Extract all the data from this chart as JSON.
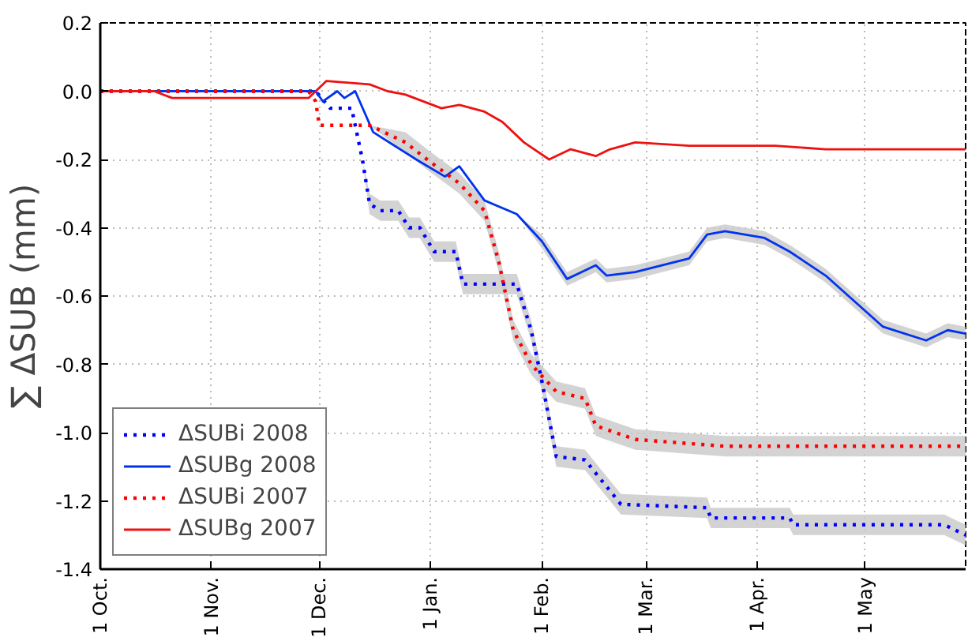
{
  "chart_data": {
    "type": "line",
    "ylabel": "∑ ΔSUB (mm)",
    "xlim": [
      "2007-10-01",
      "2008-05-29"
    ],
    "ylim": [
      -1.4,
      0.2
    ],
    "xticks": [
      {
        "value": "2007-10-01",
        "label": "1 Oct."
      },
      {
        "value": "2007-11-01",
        "label": "1 Nov."
      },
      {
        "value": "2007-12-01",
        "label": "1 Dec."
      },
      {
        "value": "2008-01-01",
        "label": "1 Jan."
      },
      {
        "value": "2008-02-01",
        "label": "1 Feb."
      },
      {
        "value": "2008-03-01",
        "label": "1 Mar."
      },
      {
        "value": "2008-04-01",
        "label": "1 Apr."
      },
      {
        "value": "2008-05-01",
        "label": "1 May"
      }
    ],
    "yticks": [
      {
        "value": 0.2,
        "label": "0.2"
      },
      {
        "value": 0,
        "label": "0.0"
      },
      {
        "value": -0.2,
        "label": "-0.2"
      },
      {
        "value": -0.4,
        "label": "-0.4"
      },
      {
        "value": -0.6,
        "label": "-0.6"
      },
      {
        "value": -0.8,
        "label": "-0.8"
      },
      {
        "value": -1.0,
        "label": "-1.0"
      },
      {
        "value": -1.2,
        "label": "-1.2"
      },
      {
        "value": -1.4,
        "label": "-1.4"
      }
    ],
    "grid": true,
    "legend": "bottom left",
    "marker": "none",
    "series": [
      {
        "name": "ΔSUBi 2008",
        "color": "#0000ff",
        "line_style": "dotted",
        "x": [
          "2007-10-01",
          "2007-11-30",
          "2007-12-04",
          "2007-12-10",
          "2007-12-13",
          "2007-12-15",
          "2007-12-18",
          "2007-12-23",
          "2007-12-26",
          "2007-12-29",
          "2008-01-02",
          "2008-01-08",
          "2008-01-10",
          "2008-01-25",
          "2008-01-29",
          "2008-02-01",
          "2008-02-05",
          "2008-02-13",
          "2008-02-23",
          "2008-03-18",
          "2008-03-19",
          "2008-04-10",
          "2008-04-11",
          "2008-05-23",
          "2008-05-29"
        ],
        "values": [
          0,
          0,
          -0.05,
          -0.05,
          -0.2,
          -0.33,
          -0.35,
          -0.35,
          -0.4,
          -0.4,
          -0.47,
          -0.47,
          -0.565,
          -0.565,
          -0.7,
          -0.85,
          -1.07,
          -1.08,
          -1.21,
          -1.22,
          -1.25,
          -1.25,
          -1.27,
          -1.27,
          -1.3
        ],
        "lower": [
          0,
          0,
          -0.05,
          -0.05,
          -0.2,
          -0.36,
          -0.38,
          -0.38,
          -0.43,
          -0.43,
          -0.5,
          -0.5,
          -0.595,
          -0.595,
          -0.73,
          -0.88,
          -1.1,
          -1.11,
          -1.24,
          -1.25,
          -1.28,
          -1.28,
          -1.3,
          -1.3,
          -1.33
        ],
        "upper": [
          0,
          0,
          -0.05,
          -0.05,
          -0.2,
          -0.3,
          -0.32,
          -0.32,
          -0.37,
          -0.37,
          -0.44,
          -0.44,
          -0.535,
          -0.535,
          -0.67,
          -0.82,
          -1.04,
          -1.05,
          -1.18,
          -1.19,
          -1.22,
          -1.22,
          -1.24,
          -1.24,
          -1.27
        ]
      },
      {
        "name": "ΔSUBg 2008",
        "color": "#0033ee",
        "line_style": "solid",
        "x": [
          "2007-10-01",
          "2007-11-30",
          "2007-12-02",
          "2007-12-06",
          "2007-12-08",
          "2007-12-11",
          "2007-12-16",
          "2007-12-22",
          "2007-12-28",
          "2008-01-05",
          "2008-01-09",
          "2008-01-16",
          "2008-01-25",
          "2008-02-01",
          "2008-02-08",
          "2008-02-12",
          "2008-02-16",
          "2008-02-19",
          "2008-02-27",
          "2008-03-13",
          "2008-03-18",
          "2008-03-23",
          "2008-04-03",
          "2008-04-10",
          "2008-04-20",
          "2008-05-06",
          "2008-05-18",
          "2008-05-24",
          "2008-05-29"
        ],
        "values": [
          0,
          0,
          -0.03,
          0,
          -0.02,
          0,
          -0.12,
          -0.16,
          -0.2,
          -0.25,
          -0.22,
          -0.32,
          -0.36,
          -0.44,
          -0.55,
          -0.53,
          -0.51,
          -0.54,
          -0.53,
          -0.49,
          -0.42,
          -0.41,
          -0.43,
          -0.47,
          -0.54,
          -0.69,
          -0.73,
          -0.7,
          -0.71
        ],
        "lower": [
          0,
          0,
          -0.03,
          0,
          -0.02,
          0,
          -0.12,
          -0.16,
          -0.2,
          -0.25,
          -0.22,
          -0.32,
          -0.36,
          -0.46,
          -0.57,
          -0.55,
          -0.53,
          -0.56,
          -0.55,
          -0.51,
          -0.44,
          -0.43,
          -0.45,
          -0.49,
          -0.56,
          -0.71,
          -0.75,
          -0.72,
          -0.73
        ],
        "upper": [
          0,
          0,
          -0.03,
          0,
          -0.02,
          0,
          -0.12,
          -0.16,
          -0.2,
          -0.25,
          -0.22,
          -0.32,
          -0.36,
          -0.42,
          -0.53,
          -0.51,
          -0.49,
          -0.52,
          -0.51,
          -0.47,
          -0.4,
          -0.39,
          -0.41,
          -0.45,
          -0.52,
          -0.67,
          -0.71,
          -0.68,
          -0.69
        ]
      },
      {
        "name": "ΔSUBi 2007",
        "color": "#ff0000",
        "line_style": "dotted",
        "x": [
          "2007-10-01",
          "2007-11-28",
          "2007-11-30",
          "2007-12-01",
          "2007-12-15",
          "2007-12-25",
          "2007-12-31",
          "2008-01-09",
          "2008-01-16",
          "2008-01-20",
          "2008-01-24",
          "2008-01-29",
          "2008-02-05",
          "2008-02-13",
          "2008-02-16",
          "2008-02-27",
          "2008-03-23",
          "2008-05-29"
        ],
        "values": [
          0,
          0,
          -0.03,
          -0.1,
          -0.1,
          -0.15,
          -0.2,
          -0.27,
          -0.35,
          -0.5,
          -0.7,
          -0.8,
          -0.88,
          -0.9,
          -0.98,
          -1.02,
          -1.04,
          -1.04
        ],
        "lower": [
          0,
          0,
          -0.03,
          -0.1,
          -0.1,
          -0.18,
          -0.23,
          -0.3,
          -0.38,
          -0.53,
          -0.73,
          -0.83,
          -0.91,
          -0.93,
          -1.01,
          -1.05,
          -1.07,
          -1.07
        ],
        "upper": [
          0,
          0,
          -0.03,
          -0.1,
          -0.1,
          -0.12,
          -0.17,
          -0.24,
          -0.32,
          -0.47,
          -0.67,
          -0.77,
          -0.85,
          -0.87,
          -0.95,
          -0.99,
          -1.01,
          -1.01
        ]
      },
      {
        "name": "ΔSUBg 2007",
        "color": "#ee1111",
        "line_style": "solid",
        "x": [
          "2007-10-01",
          "2007-10-16",
          "2007-10-21",
          "2007-11-28",
          "2007-12-03",
          "2007-12-15",
          "2007-12-20",
          "2007-12-25",
          "2008-01-04",
          "2008-01-09",
          "2008-01-16",
          "2008-01-21",
          "2008-01-27",
          "2008-02-03",
          "2008-02-09",
          "2008-02-16",
          "2008-02-20",
          "2008-02-27",
          "2008-03-13",
          "2008-04-06",
          "2008-04-20",
          "2008-05-29"
        ],
        "values": [
          0,
          0,
          -0.02,
          -0.02,
          0.03,
          0.02,
          0,
          -0.01,
          -0.05,
          -0.04,
          -0.06,
          -0.09,
          -0.15,
          -0.2,
          -0.17,
          -0.19,
          -0.17,
          -0.15,
          -0.16,
          -0.16,
          -0.17,
          -0.17
        ]
      }
    ]
  }
}
